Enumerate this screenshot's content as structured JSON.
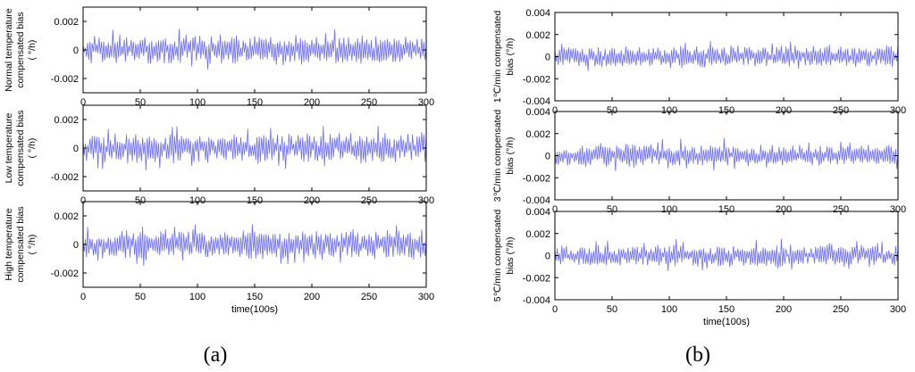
{
  "panel_labels": {
    "a": "(a)",
    "b": "(b)"
  },
  "chart_data": [
    {
      "type": "line",
      "panel": "a",
      "row": 0,
      "ylabel_lines": [
        "Normal temperature",
        "compensated bias",
        "( °/h)"
      ],
      "xlabel": "",
      "xlim": [
        0,
        300
      ],
      "ylim": [
        -0.003,
        0.003
      ],
      "xticks": [
        0,
        50,
        100,
        150,
        200,
        250,
        300
      ],
      "yticks": [
        -0.002,
        0,
        0.002
      ],
      "ytick_labels": [
        "-0.002",
        "0",
        "0.002"
      ],
      "series_color": "#6b6bf0",
      "seed": 11,
      "amplitude": 0.00095
    },
    {
      "type": "line",
      "panel": "a",
      "row": 1,
      "ylabel_lines": [
        "Low temperature",
        "compensated bias",
        "( °/h)"
      ],
      "xlabel": "",
      "xlim": [
        0,
        300
      ],
      "ylim": [
        -0.003,
        0.003
      ],
      "xticks": [
        0,
        50,
        100,
        150,
        200,
        250,
        300
      ],
      "yticks": [
        -0.002,
        0,
        0.002
      ],
      "ytick_labels": [
        "-0.002",
        "0",
        "0.002"
      ],
      "series_color": "#6b6bf0",
      "seed": 23,
      "amplitude": 0.00095
    },
    {
      "type": "line",
      "panel": "a",
      "row": 2,
      "ylabel_lines": [
        "High temperature",
        "compensated bias",
        "( °/h)"
      ],
      "xlabel": "time(100s)",
      "xlim": [
        0,
        300
      ],
      "ylim": [
        -0.003,
        0.003
      ],
      "xticks": [
        0,
        50,
        100,
        150,
        200,
        250,
        300
      ],
      "yticks": [
        -0.002,
        0,
        0.002
      ],
      "ytick_labels": [
        "-0.002",
        "0",
        "0.002"
      ],
      "series_color": "#6b6bf0",
      "seed": 37,
      "amplitude": 0.00095
    },
    {
      "type": "line",
      "panel": "b",
      "row": 0,
      "ylabel_lines": [
        "1℃/min compensated",
        "bias  (°/h)"
      ],
      "xlabel": "",
      "xlim": [
        0,
        300
      ],
      "ylim": [
        -0.004,
        0.004
      ],
      "xticks": [
        0,
        50,
        100,
        150,
        200,
        250,
        300
      ],
      "yticks": [
        -0.004,
        -0.002,
        0,
        0.002,
        0.004
      ],
      "ytick_labels": [
        "-0.004",
        "-0.002",
        "0",
        "0.002",
        "0.004"
      ],
      "series_color": "#6b6bf0",
      "seed": 41,
      "amplitude": 0.0009
    },
    {
      "type": "line",
      "panel": "b",
      "row": 1,
      "ylabel_lines": [
        "3℃/min compensated",
        "bias  (°/h)"
      ],
      "xlabel": "",
      "xlim": [
        0,
        300
      ],
      "ylim": [
        -0.004,
        0.004
      ],
      "xticks": [
        0,
        50,
        100,
        150,
        200,
        250,
        300
      ],
      "yticks": [
        -0.004,
        -0.002,
        0,
        0.002,
        0.004
      ],
      "ytick_labels": [
        "-0.004",
        "-0.002",
        "0",
        "0.002",
        "0.004"
      ],
      "series_color": "#6b6bf0",
      "seed": 53,
      "amplitude": 0.0009
    },
    {
      "type": "line",
      "panel": "b",
      "row": 2,
      "ylabel_lines": [
        "5℃/min compensated",
        "bias  (°/h)"
      ],
      "xlabel": "time(100s)",
      "xlim": [
        0,
        300
      ],
      "ylim": [
        -0.004,
        0.004
      ],
      "xticks": [
        0,
        50,
        100,
        150,
        200,
        250,
        300
      ],
      "yticks": [
        -0.004,
        -0.002,
        0,
        0.002,
        0.004
      ],
      "ytick_labels": [
        "-0.004",
        "-0.002",
        "0",
        "0.002",
        "0.004"
      ],
      "series_color": "#6b6bf0",
      "seed": 67,
      "amplitude": 0.0009
    }
  ]
}
